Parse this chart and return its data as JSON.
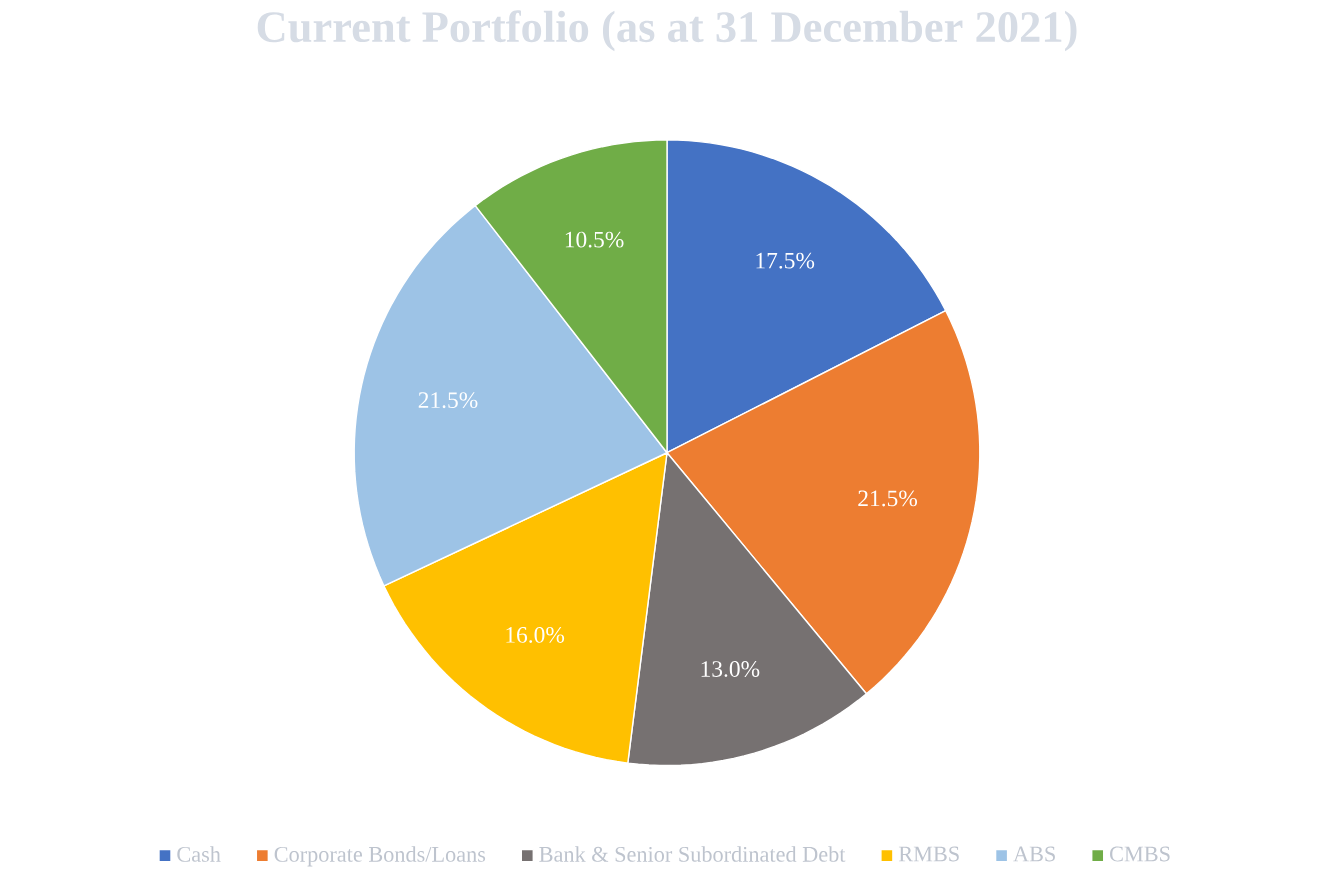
{
  "chart_data": {
    "type": "pie",
    "title": "Current Portfolio (as at 31 December 2021)",
    "categories": [
      "Cash",
      "Corporate Bonds/Loans",
      "Bank & Senior Subordinated Debt",
      "RMBS",
      "ABS",
      "CMBS"
    ],
    "values": [
      17.5,
      21.5,
      13.0,
      16.0,
      21.5,
      10.5
    ],
    "colors": [
      "#4472c4",
      "#ed7d31",
      "#767171",
      "#ffc000",
      "#9dc3e6",
      "#70ad47"
    ],
    "value_labels": [
      "17.5%",
      "21.5%",
      "13.0%",
      "16.0%",
      "21.5%",
      "10.5%"
    ],
    "legend": "bottom"
  }
}
